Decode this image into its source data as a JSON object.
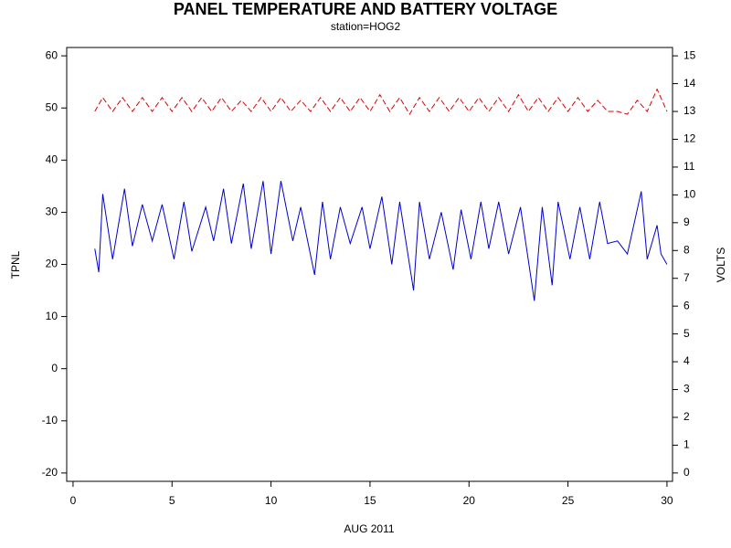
{
  "chart_data": {
    "type": "line",
    "title": "PANEL TEMPERATURE AND BATTERY VOLTAGE",
    "subtitle": "station=HOG2",
    "xlabel": "AUG 2011",
    "ylabel": "TPNL",
    "y2label": "VOLTS",
    "xlim": [
      -0.32,
      30.28
    ],
    "xticks": [
      0,
      5,
      10,
      15,
      20,
      25,
      30
    ],
    "ylim": [
      -21.6,
      61.6
    ],
    "yticks": [
      -20,
      -10,
      0,
      10,
      20,
      30,
      40,
      50,
      60
    ],
    "y2lim": [
      -0.3,
      15.3
    ],
    "y2ticks": [
      0,
      1,
      2,
      3,
      4,
      5,
      6,
      7,
      8,
      9,
      10,
      11,
      12,
      13,
      14,
      15
    ],
    "series": [
      {
        "name": "TPNL",
        "color": "#0000cc",
        "axis": "y",
        "dashed": false,
        "x": [
          1.1,
          1.3,
          1.5,
          2.0,
          2.6,
          3.0,
          3.5,
          4.0,
          4.5,
          5.1,
          5.6,
          6.0,
          6.7,
          7.1,
          7.6,
          8.0,
          8.6,
          9.0,
          9.6,
          10.0,
          10.5,
          11.1,
          11.5,
          12.2,
          12.6,
          13.0,
          13.5,
          14.0,
          14.6,
          15.0,
          15.6,
          16.1,
          16.5,
          17.2,
          17.5,
          18.0,
          18.6,
          19.2,
          19.6,
          20.1,
          20.6,
          21.0,
          21.5,
          22.0,
          22.6,
          23.3,
          23.7,
          24.2,
          24.5,
          25.1,
          25.6,
          26.1,
          26.6,
          27.0,
          27.5,
          28.0,
          28.7,
          29.0,
          29.5,
          29.7,
          30.0
        ],
        "values": [
          23,
          18.5,
          33.5,
          21,
          34.5,
          23.5,
          31.5,
          24.5,
          31.5,
          21,
          32,
          22.5,
          31,
          24.5,
          34.5,
          24,
          35.5,
          23,
          36,
          22,
          36,
          24.5,
          31,
          18,
          32,
          21,
          31,
          24,
          31,
          23,
          33,
          20,
          32,
          15,
          32,
          21,
          30,
          19,
          30.5,
          21,
          32,
          23,
          32,
          22,
          31,
          13,
          31,
          16,
          32,
          21,
          31,
          21,
          32,
          24,
          24.5,
          22,
          34,
          21,
          27.5,
          22,
          20
        ]
      },
      {
        "name": "VOLTS",
        "color": "#dd0000",
        "axis": "y2",
        "dashed": true,
        "x": [
          1.1,
          1.5,
          2.0,
          2.5,
          3.0,
          3.5,
          4.0,
          4.5,
          5.0,
          5.5,
          6.0,
          6.5,
          7.0,
          7.5,
          8.0,
          8.5,
          9.0,
          9.5,
          10.0,
          10.5,
          11.0,
          11.5,
          12.0,
          12.5,
          13.0,
          13.5,
          14.0,
          14.5,
          15.0,
          15.5,
          16.0,
          16.5,
          17.0,
          17.5,
          18.0,
          18.5,
          19.0,
          19.5,
          20.0,
          20.5,
          21.0,
          21.5,
          22.0,
          22.5,
          23.0,
          23.5,
          24.0,
          24.5,
          25.0,
          25.5,
          26.0,
          26.5,
          27.0,
          27.5,
          28.0,
          28.5,
          29.0,
          29.5,
          30.0
        ],
        "values": [
          13.0,
          13.5,
          13.0,
          13.5,
          13.0,
          13.5,
          13.0,
          13.5,
          13.0,
          13.5,
          13.0,
          13.5,
          13.0,
          13.5,
          13.0,
          13.4,
          13.0,
          13.5,
          13.0,
          13.5,
          13.0,
          13.4,
          13.0,
          13.5,
          13.0,
          13.5,
          13.0,
          13.5,
          13.0,
          13.6,
          13.0,
          13.5,
          12.9,
          13.5,
          13.0,
          13.5,
          13.0,
          13.5,
          13.0,
          13.5,
          13.0,
          13.5,
          13.0,
          13.6,
          13.0,
          13.5,
          13.0,
          13.5,
          13.0,
          13.5,
          13.0,
          13.4,
          13.0,
          13.0,
          12.9,
          13.4,
          13.0,
          13.8,
          13.0
        ]
      }
    ]
  }
}
